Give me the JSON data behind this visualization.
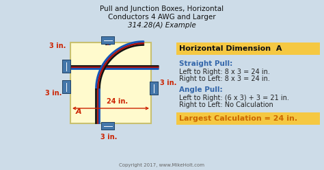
{
  "title_line1": "Pull and Junction Boxes, Horizontal",
  "title_line2": "Conductors 4 AWG and Larger",
  "title_line3": "314.28(A) Example",
  "bg_color": "#cddce8",
  "box_fill": "#fffacd",
  "box_edge": "#c8c070",
  "connector_fill": "#4477aa",
  "connector_edge": "#224466",
  "dim_color": "#cc2200",
  "label_color": "#3366aa",
  "highlight_color": "#f5c842",
  "text_dark": "#222222",
  "copyright": "Copyright 2017, www.MikeHolt.com",
  "right_title": "Horizontal Dimension  A",
  "straight_pull_title": "Straight Pull:",
  "straight_pull_l1": "Left to Right: 8 x 3 = 24 in.",
  "straight_pull_l2": "Right to Left: 8 x 3 = 24 in.",
  "angle_pull_title": "Angle Pull:",
  "angle_pull_l1": "Left to Right: (6 x 3) + 3 = 21 in.",
  "angle_pull_l2": "Right to Left: No Calculation",
  "largest_calc": "Largest Calculation = 24 in.",
  "dim_labels": [
    "3 in.",
    "3 in.",
    "3 in.",
    "3 in.",
    "24 in."
  ],
  "dim_A_label": "A",
  "wire_colors": [
    "#111111",
    "#aa1111",
    "#1155bb"
  ],
  "wire_lw": 2.0
}
